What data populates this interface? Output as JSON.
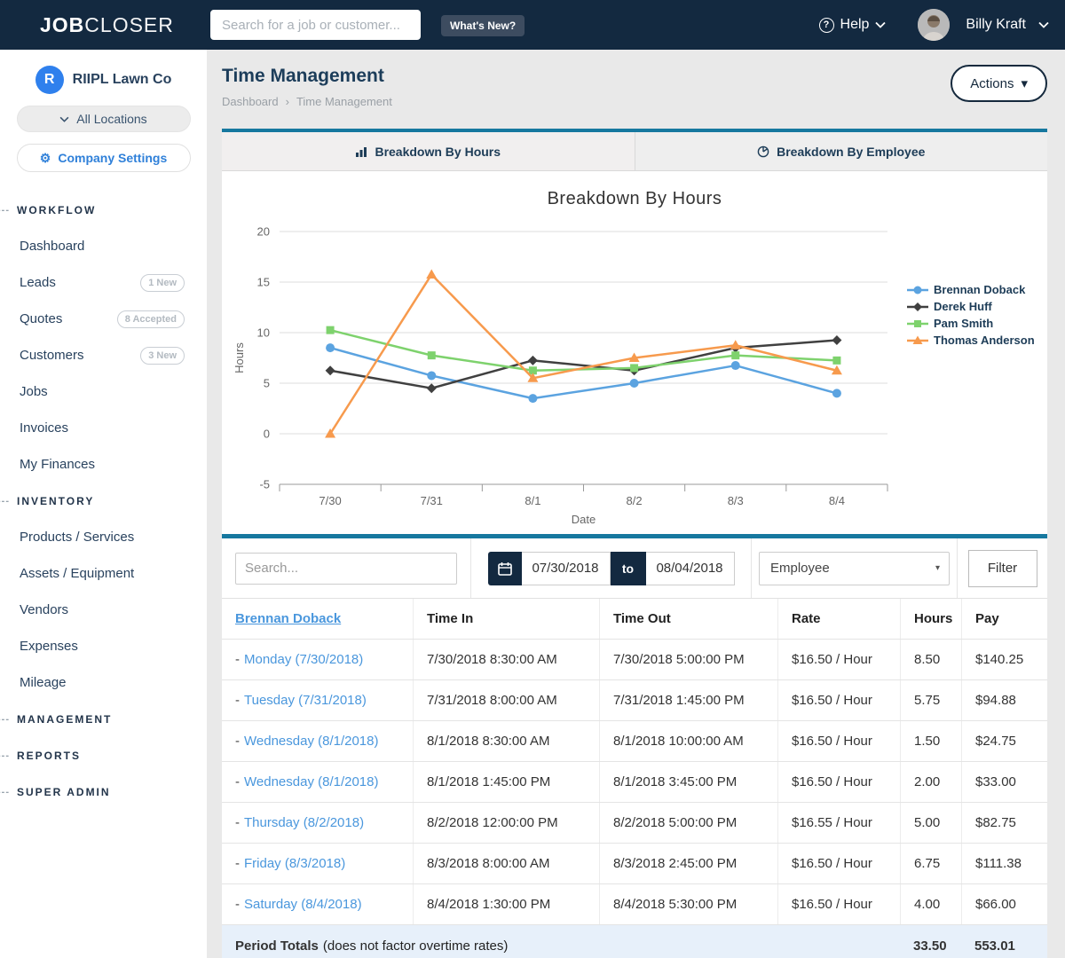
{
  "navbar": {
    "logo_bold": "JOB",
    "logo_light": "CLOSER",
    "search_placeholder": "Search for a job or customer...",
    "whats_new_label": "What's New?",
    "help_label": "Help",
    "help_icon": "?",
    "user_name": "Billy Kraft"
  },
  "sidebar": {
    "company_initial": "R",
    "company_name": "RIIPL Lawn Co",
    "locations_label": "All Locations",
    "settings_label": "Company Settings",
    "settings_icon": "gear-icon",
    "sections": [
      {
        "label": "WORKFLOW",
        "items": [
          {
            "label": "Dashboard"
          },
          {
            "label": "Leads",
            "badge": "1 New"
          },
          {
            "label": "Quotes",
            "badge": "8 Accepted"
          },
          {
            "label": "Customers",
            "badge": "3 New"
          },
          {
            "label": "Jobs"
          },
          {
            "label": "Invoices"
          },
          {
            "label": "My Finances"
          }
        ]
      },
      {
        "label": "INVENTORY",
        "items": [
          {
            "label": "Products / Services"
          },
          {
            "label": "Assets / Equipment"
          },
          {
            "label": "Vendors"
          },
          {
            "label": "Expenses"
          },
          {
            "label": "Mileage"
          }
        ]
      },
      {
        "label": "MANAGEMENT",
        "items": []
      },
      {
        "label": "REPORTS",
        "items": []
      },
      {
        "label": "SUPER ADMIN",
        "items": []
      }
    ]
  },
  "header": {
    "title": "Time Management",
    "breadcrumb": [
      "Dashboard",
      "Time Management"
    ],
    "breadcrumb_sep": "›",
    "actions_label": "Actions",
    "actions_caret": "▾"
  },
  "tabs": [
    {
      "label": "Breakdown By Hours",
      "icon": "bar-chart-icon",
      "active": true
    },
    {
      "label": "Breakdown By Employee",
      "icon": "pie-chart-icon",
      "active": false
    }
  ],
  "chart_data": {
    "type": "line",
    "title": "Breakdown By Hours",
    "xlabel": "Date",
    "ylabel": "Hours",
    "ylim": [
      -5,
      20
    ],
    "yticks": [
      20,
      15,
      10,
      5,
      0,
      -5
    ],
    "grid": true,
    "legend_position": "right",
    "categories": [
      "7/30",
      "7/31",
      "8/1",
      "8/2",
      "8/3",
      "8/4"
    ],
    "series": [
      {
        "name": "Brennan Doback",
        "color": "#5ba3e0",
        "marker": "circle",
        "values": [
          8.5,
          5.75,
          3.5,
          5,
          6.75,
          4
        ]
      },
      {
        "name": "Derek Huff",
        "color": "#404040",
        "marker": "diamond",
        "values": [
          6.25,
          4.5,
          7.25,
          6.25,
          8.5,
          9.25
        ]
      },
      {
        "name": "Pam Smith",
        "color": "#7ed26d",
        "marker": "square",
        "values": [
          10.25,
          7.75,
          6.25,
          6.5,
          7.75,
          7.25
        ]
      },
      {
        "name": "Thomas Anderson",
        "color": "#f79a4d",
        "marker": "triangle",
        "values": [
          0,
          15.75,
          5.5,
          7.5,
          8.75,
          6.25
        ]
      }
    ]
  },
  "filters": {
    "search_placeholder": "Search...",
    "calendar_icon": "calendar-icon",
    "date_from": "07/30/2018",
    "range_separator": "to",
    "date_to": "08/04/2018",
    "group_by_selected": "Employee",
    "select_caret": "▾",
    "filter_label": "Filter"
  },
  "table": {
    "employee": "Brennan Doback",
    "columns": [
      "Time In",
      "Time Out",
      "Rate",
      "Hours",
      "Pay"
    ],
    "rows": [
      {
        "day": "Monday (7/30/2018)",
        "time_in": "7/30/2018 8:30:00 AM",
        "time_out": "7/30/2018 5:00:00 PM",
        "rate": "$16.50 / Hour",
        "hours": "8.50",
        "pay": "$140.25"
      },
      {
        "day": "Tuesday (7/31/2018)",
        "time_in": "7/31/2018 8:00:00 AM",
        "time_out": "7/31/2018 1:45:00 PM",
        "rate": "$16.50 / Hour",
        "hours": "5.75",
        "pay": "$94.88"
      },
      {
        "day": "Wednesday (8/1/2018)",
        "time_in": "8/1/2018 8:30:00 AM",
        "time_out": "8/1/2018 10:00:00 AM",
        "rate": "$16.50 / Hour",
        "hours": "1.50",
        "pay": "$24.75"
      },
      {
        "day": "Wednesday (8/1/2018)",
        "time_in": "8/1/2018 1:45:00 PM",
        "time_out": "8/1/2018 3:45:00 PM",
        "rate": "$16.50 / Hour",
        "hours": "2.00",
        "pay": "$33.00"
      },
      {
        "day": "Thursday (8/2/2018)",
        "time_in": "8/2/2018 12:00:00 PM",
        "time_out": "8/2/2018 5:00:00 PM",
        "rate": "$16.55 / Hour",
        "hours": "5.00",
        "pay": "$82.75"
      },
      {
        "day": "Friday (8/3/2018)",
        "time_in": "8/3/2018 8:00:00 AM",
        "time_out": "8/3/2018 2:45:00 PM",
        "rate": "$16.50 / Hour",
        "hours": "6.75",
        "pay": "$111.38"
      },
      {
        "day": "Saturday (8/4/2018)",
        "time_in": "8/4/2018 1:30:00 PM",
        "time_out": "8/4/2018 5:30:00 PM",
        "rate": "$16.50 / Hour",
        "hours": "4.00",
        "pay": "$66.00"
      }
    ],
    "totals": {
      "label": "Period Totals",
      "note": "(does not factor overtime rates)",
      "hours": "33.50",
      "pay": "553.01"
    }
  }
}
